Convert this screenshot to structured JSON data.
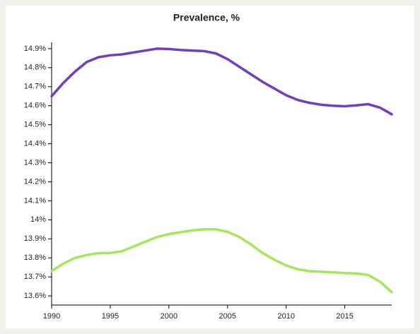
{
  "chart_data": {
    "type": "line",
    "title": "Prevalence, %",
    "x": [
      1990,
      1991,
      1992,
      1993,
      1994,
      1995,
      1996,
      1997,
      1998,
      1999,
      2000,
      2001,
      2002,
      2003,
      2004,
      2005,
      2006,
      2007,
      2008,
      2009,
      2010,
      2011,
      2012,
      2013,
      2014,
      2015,
      2016,
      2017,
      2018,
      2019
    ],
    "series": [
      {
        "color": "#6f3fbf",
        "values": [
          14.65,
          14.72,
          14.78,
          14.83,
          14.855,
          14.865,
          14.87,
          14.88,
          14.89,
          14.9,
          14.898,
          14.893,
          14.89,
          14.887,
          14.875,
          14.845,
          14.805,
          14.765,
          14.725,
          14.69,
          14.655,
          14.63,
          14.615,
          14.605,
          14.6,
          14.597,
          14.602,
          14.608,
          14.59,
          14.555
        ]
      },
      {
        "color": "#a6e65a",
        "values": [
          13.73,
          13.77,
          13.8,
          13.815,
          13.825,
          13.826,
          13.835,
          13.86,
          13.885,
          13.91,
          13.925,
          13.935,
          13.944,
          13.95,
          13.95,
          13.937,
          13.91,
          13.87,
          13.825,
          13.79,
          13.76,
          13.74,
          13.73,
          13.727,
          13.724,
          13.72,
          13.718,
          13.71,
          13.675,
          13.62
        ]
      }
    ],
    "xlim": [
      1990,
      2019
    ],
    "xticks": [
      1990,
      1995,
      2000,
      2005,
      2010,
      2015
    ],
    "ylim": [
      13.552,
      14.933
    ],
    "yticks": [
      {
        "value": 13.6,
        "label": "13.6%"
      },
      {
        "value": 13.7,
        "label": "13.7%"
      },
      {
        "value": 13.8,
        "label": "13.8%"
      },
      {
        "value": 13.9,
        "label": "13.9%"
      },
      {
        "value": 14,
        "label": "14%"
      },
      {
        "value": 14.1,
        "label": "14.1%"
      },
      {
        "value": 14.2,
        "label": "14.2%"
      },
      {
        "value": 14.3,
        "label": "14.3%"
      },
      {
        "value": 14.4,
        "label": "14.4%"
      },
      {
        "value": 14.5,
        "label": "14.5%"
      },
      {
        "value": 14.6,
        "label": "14.6%"
      },
      {
        "value": 14.7,
        "label": "14.7%"
      },
      {
        "value": 14.8,
        "label": "14.8%"
      },
      {
        "value": 14.9,
        "label": "14.9%"
      }
    ]
  }
}
